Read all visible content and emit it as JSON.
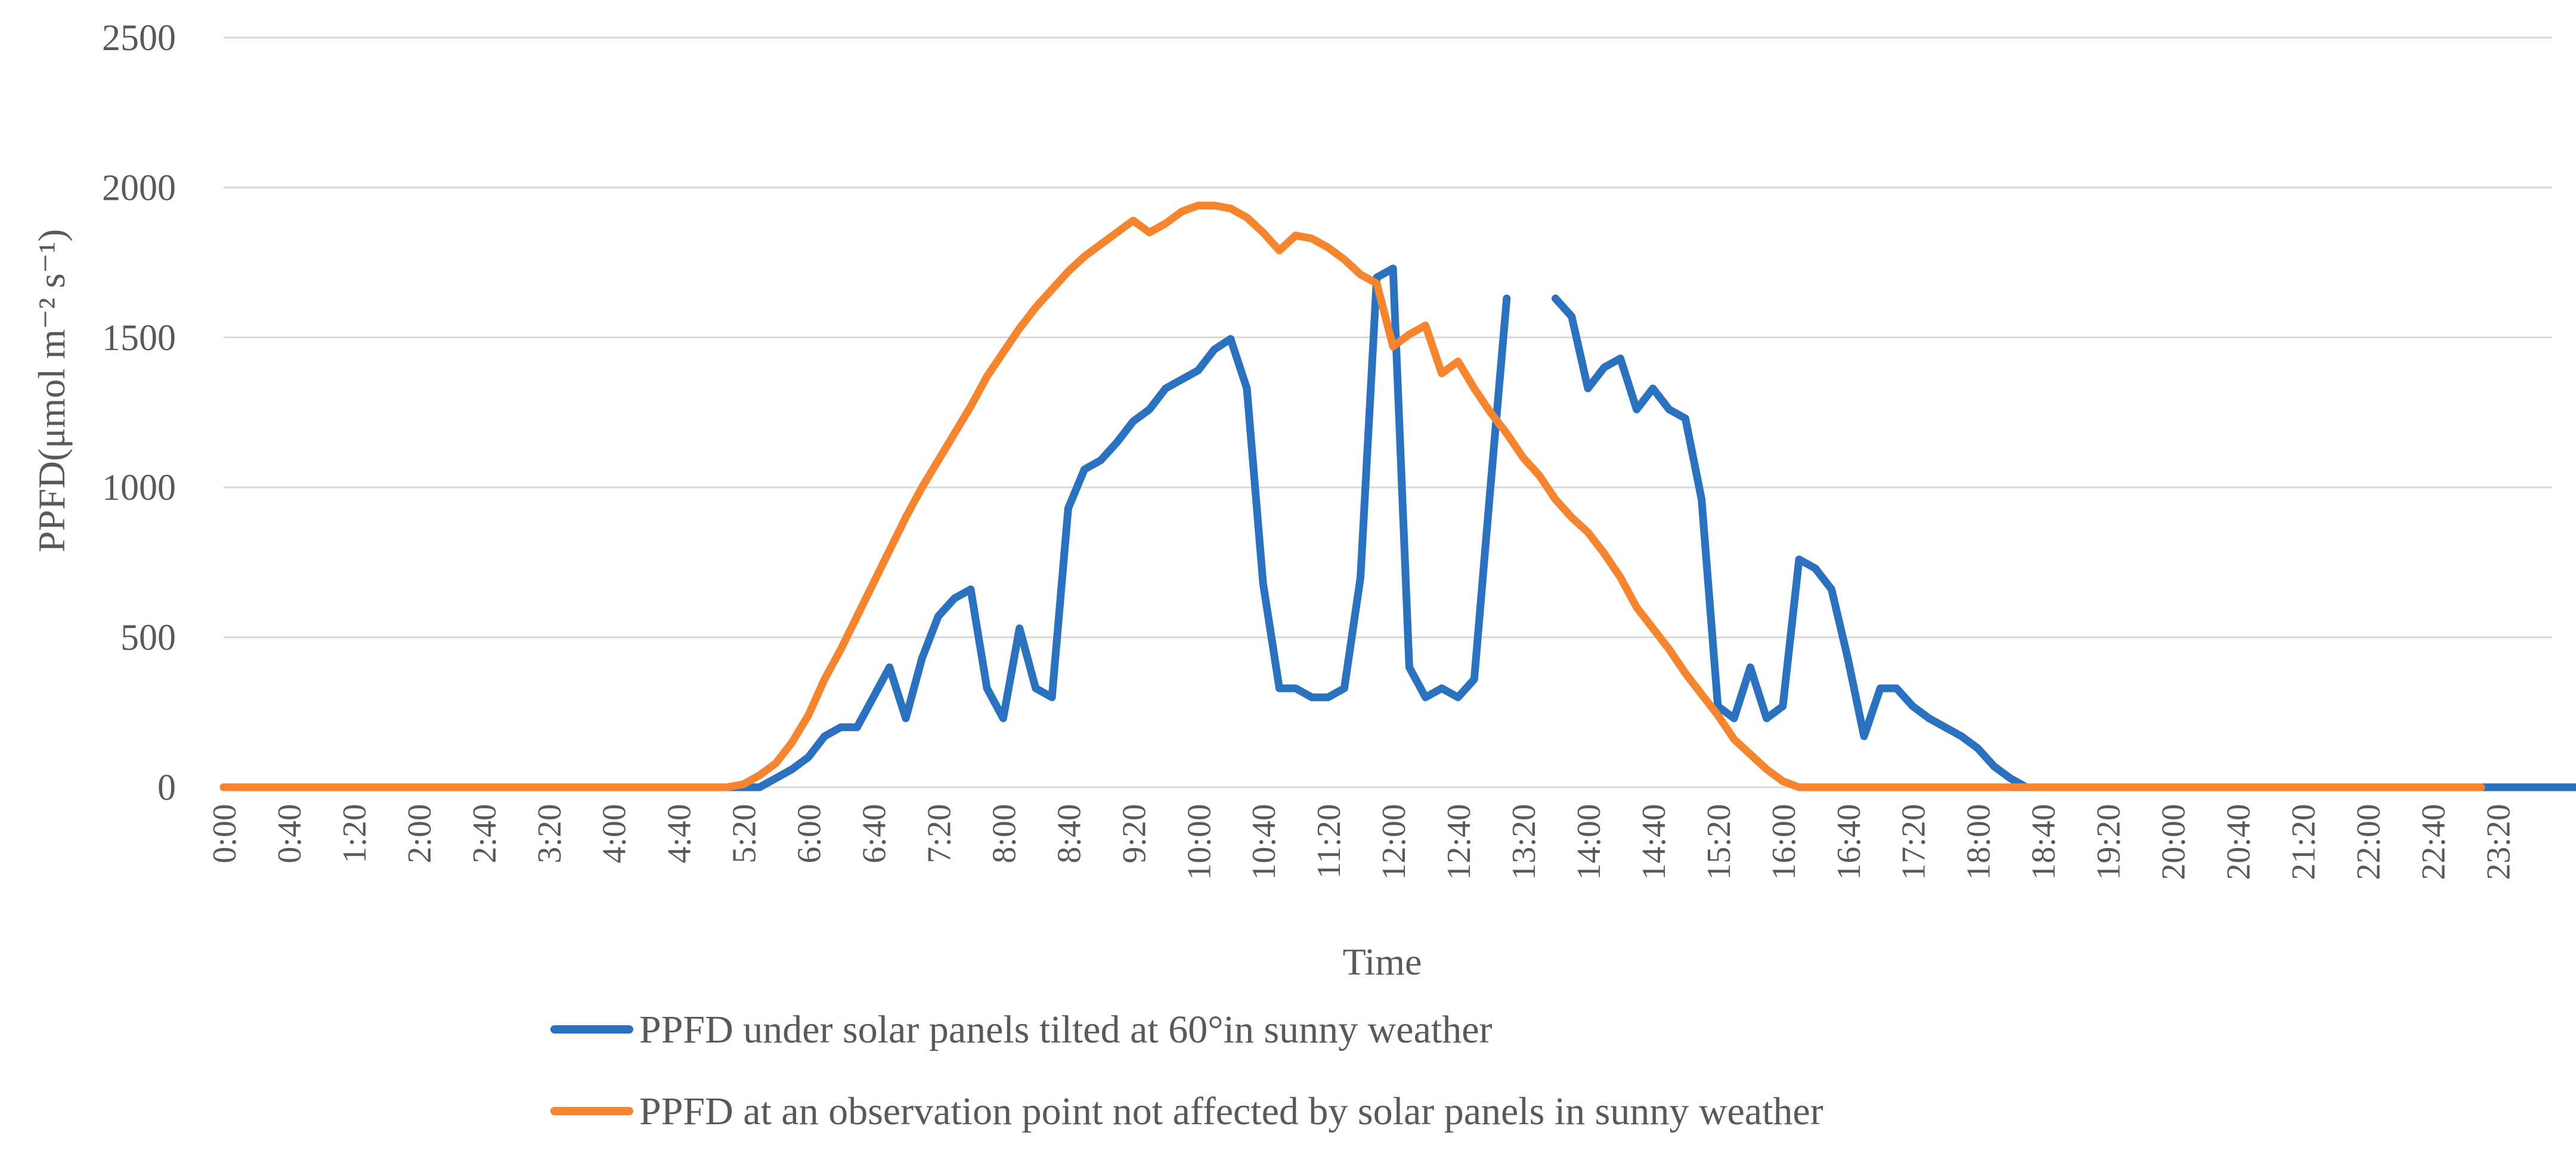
{
  "chart_data": {
    "type": "line",
    "title": "",
    "xlabel": "Time",
    "ylabel": "PPFD(μmol m⁻² s⁻¹)",
    "ylim": [
      0,
      2500
    ],
    "yticks": [
      0,
      500,
      1000,
      1500,
      2000,
      2500
    ],
    "xlim": [
      0,
      1430
    ],
    "x_step_minutes": 10,
    "grid": "horizontal",
    "legend_position": "bottom",
    "xtick_labels": [
      "0:00",
      "0:40",
      "1:20",
      "2:00",
      "2:40",
      "3:20",
      "4:00",
      "4:40",
      "5:20",
      "6:00",
      "6:40",
      "7:20",
      "8:00",
      "8:40",
      "9:20",
      "10:00",
      "10:40",
      "11:20",
      "12:00",
      "12:40",
      "13:20",
      "14:00",
      "14:40",
      "15:20",
      "16:00",
      "16:40",
      "17:20",
      "18:00",
      "18:40",
      "19:20",
      "20:00",
      "20:40",
      "21:20",
      "22:00",
      "22:40",
      "23:20"
    ],
    "series": [
      {
        "name": "PPFD under solar panels tilted at 60°in sunny weather",
        "color": "#2a71bf",
        "segments": [
          {
            "start_minute": 0,
            "values": [
              0,
              0,
              0,
              0,
              0,
              0,
              0,
              0,
              0,
              0,
              0,
              0,
              0,
              0,
              0,
              0,
              0,
              0,
              0,
              0,
              0,
              0,
              0,
              0,
              0,
              0,
              0,
              0,
              0,
              0,
              0,
              0,
              0,
              0,
              30,
              60,
              100,
              170,
              200,
              200,
              300,
              400,
              230,
              430,
              570,
              630,
              660,
              330,
              230,
              530,
              330,
              300,
              930,
              1060,
              1090,
              1150,
              1220,
              1260,
              1330,
              1360,
              1390,
              1460,
              1495,
              1330,
              680,
              330,
              330,
              300,
              300,
              330,
              700,
              1700,
              1730,
              400,
              300,
              330,
              300,
              360,
              1000,
              1630
            ]
          },
          {
            "start_minute": 820,
            "values": [
              1630,
              1570,
              1330,
              1400,
              1430,
              1260,
              1330,
              1260,
              1230,
              960,
              270,
              230,
              400,
              230,
              270,
              760,
              730,
              660,
              430,
              170,
              330,
              330,
              270,
              230,
              200,
              170,
              130,
              70,
              30,
              0,
              0,
              0,
              0,
              0,
              0,
              0,
              0,
              0,
              0,
              0,
              0,
              0,
              0,
              0,
              0,
              0,
              0,
              0,
              0,
              0,
              0,
              0,
              0,
              0,
              0,
              0,
              0,
              0,
              0,
              0,
              0,
              0,
              0,
              0
            ]
          }
        ]
      },
      {
        "name": "PPFD at an observation point not affected by solar panels in sunny weather",
        "color": "#f5852f",
        "segments": [
          {
            "start_minute": 0,
            "values": [
              0,
              0,
              0,
              0,
              0,
              0,
              0,
              0,
              0,
              0,
              0,
              0,
              0,
              0,
              0,
              0,
              0,
              0,
              0,
              0,
              0,
              0,
              0,
              0,
              0,
              0,
              0,
              0,
              0,
              0,
              0,
              0,
              10,
              40,
              80,
              150,
              240,
              360,
              460,
              570,
              680,
              790,
              900,
              1000,
              1090,
              1180,
              1270,
              1370,
              1450,
              1530,
              1600,
              1660,
              1720,
              1770,
              1810,
              1850,
              1890,
              1850,
              1880,
              1920,
              1940,
              1940,
              1930,
              1900,
              1850,
              1790,
              1840,
              1830,
              1800,
              1760,
              1710,
              1680,
              1470,
              1510,
              1540,
              1380,
              1420,
              1330,
              1250,
              1180,
              1100,
              1040,
              960,
              900,
              850,
              780,
              700,
              600,
              530,
              460,
              380,
              310,
              240,
              160,
              110,
              60,
              20,
              0,
              0,
              0,
              0,
              0,
              0,
              0,
              0,
              0,
              0,
              0,
              0,
              0,
              0,
              0,
              0,
              0,
              0,
              0,
              0,
              0,
              0,
              0,
              0,
              0,
              0,
              0,
              0,
              0,
              0,
              0,
              0,
              0,
              0,
              0,
              0,
              0,
              0,
              0,
              0,
              0,
              0,
              0
            ]
          }
        ]
      }
    ]
  }
}
